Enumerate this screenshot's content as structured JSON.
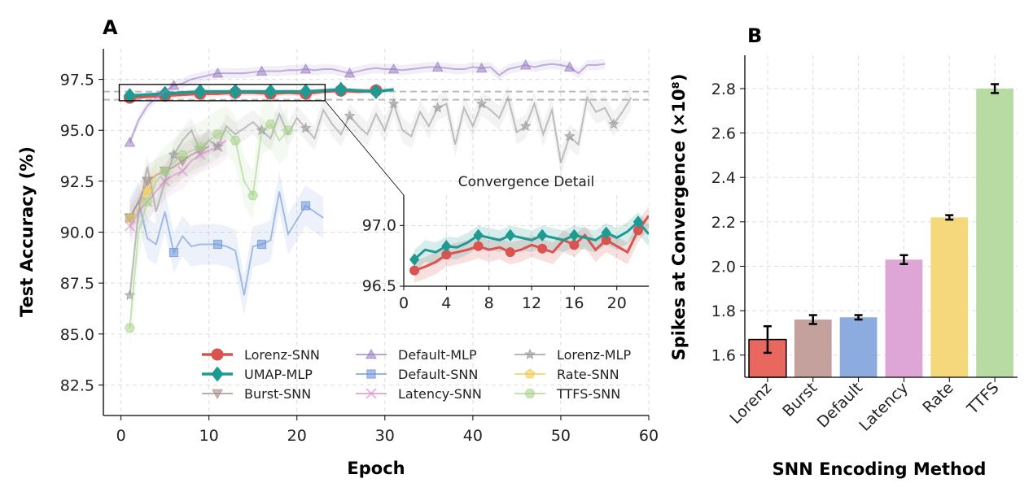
{
  "chart_data": [
    {
      "panel": "A",
      "type": "line",
      "xlabel": "Epoch",
      "ylabel": "Test Accuracy (%)",
      "xlim": [
        -2,
        60
      ],
      "ylim": [
        81,
        99
      ],
      "xticks": [
        0,
        10,
        20,
        30,
        40,
        50,
        60
      ],
      "yticks": [
        82.5,
        85.0,
        87.5,
        90.0,
        92.5,
        95.0,
        97.5
      ],
      "grid": true,
      "reference_lines": [
        96.9,
        96.5
      ],
      "legend_position": "bottom-right",
      "series": [
        {
          "name": "Lorenz-SNN",
          "color": "#d9534f",
          "marker": "circle",
          "x": [
            1,
            3,
            5,
            7,
            9,
            11,
            13,
            15,
            17,
            19,
            21,
            23,
            25,
            27,
            29
          ],
          "y": [
            96.6,
            96.65,
            96.7,
            96.75,
            96.8,
            96.8,
            96.85,
            96.85,
            96.8,
            96.85,
            96.8,
            96.9,
            96.95,
            96.9,
            96.95
          ],
          "spread": 0.15
        },
        {
          "name": "UMAP-MLP",
          "color": "#1f9a93",
          "marker": "diamond",
          "x": [
            1,
            3,
            5,
            7,
            9,
            11,
            13,
            15,
            17,
            19,
            21,
            23,
            25,
            27,
            29,
            31
          ],
          "y": [
            96.7,
            96.75,
            96.8,
            96.85,
            96.9,
            96.9,
            96.9,
            96.9,
            96.9,
            96.9,
            96.9,
            96.95,
            97.0,
            96.95,
            96.9,
            97.0
          ],
          "spread": 0.12
        },
        {
          "name": "Burst-SNN",
          "color": "#a78b87",
          "marker": "triangle-down",
          "x": [
            1,
            2,
            3,
            4,
            5,
            6,
            7,
            8,
            9,
            10
          ],
          "y": [
            90.7,
            91.5,
            92.5,
            92.8,
            93.0,
            93.2,
            93.5,
            93.8,
            94.0,
            94.2
          ],
          "spread": 0.8
        },
        {
          "name": "Default-MLP",
          "color": "#9b7fc4",
          "marker": "triangle-up",
          "x": [
            1,
            2,
            3,
            4,
            5,
            6,
            7,
            8,
            9,
            10,
            11,
            12,
            13,
            14,
            15,
            16,
            17,
            18,
            19,
            20,
            21,
            22,
            23,
            24,
            25,
            26,
            27,
            28,
            29,
            30,
            31,
            32,
            33,
            34,
            35,
            36,
            37,
            38,
            39,
            40,
            41,
            42,
            43,
            44,
            45,
            46,
            47,
            48,
            49,
            50,
            51,
            52,
            53,
            54,
            55
          ],
          "y": [
            94.4,
            95.5,
            96.2,
            96.6,
            96.9,
            97.2,
            97.3,
            97.5,
            97.6,
            97.7,
            97.8,
            97.8,
            97.8,
            97.8,
            97.85,
            97.9,
            97.9,
            97.9,
            97.95,
            97.95,
            98.0,
            97.95,
            98.0,
            98.0,
            97.9,
            97.8,
            97.9,
            98.0,
            98.05,
            98.0,
            98.0,
            97.95,
            98.0,
            98.05,
            98.1,
            98.1,
            98.05,
            98.0,
            98.0,
            98.1,
            98.05,
            98.1,
            97.7,
            98.0,
            98.1,
            98.2,
            98.1,
            98.2,
            98.25,
            98.2,
            98.1,
            97.8,
            98.2,
            98.2,
            98.25
          ],
          "spread": 0.25
        },
        {
          "name": "Default-SNN",
          "color": "#6e95d8",
          "marker": "square",
          "x": [
            1,
            2,
            3,
            4,
            5,
            6,
            7,
            8,
            9,
            10,
            11,
            12,
            13,
            14,
            15,
            16,
            17,
            18,
            19,
            20,
            21,
            22,
            23
          ],
          "y": [
            90.7,
            91.5,
            89.7,
            89.4,
            91.0,
            89.0,
            89.8,
            89.3,
            89.4,
            89.4,
            89.4,
            89.3,
            89.1,
            86.9,
            89.3,
            89.4,
            89.6,
            92.0,
            89.9,
            90.6,
            91.3,
            91.0,
            90.7
          ],
          "spread": 1.0
        },
        {
          "name": "Latency-SNN",
          "color": "#d98ccc",
          "marker": "x",
          "x": [
            1,
            2,
            3,
            4,
            5,
            6,
            7,
            8,
            9,
            10,
            11,
            12
          ],
          "y": [
            90.3,
            91.0,
            91.5,
            92.0,
            92.5,
            92.8,
            93.0,
            93.5,
            93.8,
            94.0,
            94.2,
            94.5
          ],
          "spread": 0.9
        },
        {
          "name": "Lorenz-MLP",
          "color": "#999999",
          "marker": "star",
          "x": [
            1,
            2,
            3,
            4,
            5,
            6,
            7,
            8,
            9,
            10,
            11,
            12,
            13,
            14,
            15,
            16,
            17,
            18,
            19,
            20,
            21,
            22,
            23,
            24,
            25,
            26,
            27,
            28,
            29,
            30,
            31,
            32,
            33,
            34,
            35,
            36,
            37,
            38,
            39,
            40,
            41,
            42,
            43,
            44,
            45,
            46,
            47,
            48,
            49,
            50,
            51,
            52,
            53,
            54,
            55,
            56,
            57,
            58
          ],
          "y": [
            86.9,
            91.0,
            93.2,
            91.0,
            92.5,
            93.8,
            94.5,
            95.0,
            94.0,
            94.5,
            94.2,
            95.2,
            94.8,
            95.1,
            95.4,
            95.0,
            94.6,
            95.8,
            94.8,
            95.6,
            95.1,
            94.6,
            96.0,
            95.3,
            94.8,
            95.7,
            95.2,
            94.8,
            95.8,
            95.0,
            96.3,
            95.0,
            94.7,
            95.9,
            95.2,
            96.1,
            96.3,
            94.3,
            96.1,
            95.2,
            96.3,
            96.0,
            95.6,
            96.6,
            94.9,
            95.2,
            96.3,
            94.8,
            96.0,
            93.4,
            94.7,
            94.3,
            96.6,
            95.9,
            96.1,
            95.3,
            95.9,
            96.6
          ],
          "spread": 0.6
        },
        {
          "name": "Rate-SNN",
          "color": "#f2c94c",
          "marker": "pentagon",
          "x": [
            1,
            2,
            3,
            4
          ],
          "y": [
            90.7,
            91.2,
            92.0,
            92.8
          ],
          "spread": 0.6
        },
        {
          "name": "TTFS-SNN",
          "color": "#a7d48a",
          "marker": "hexagon",
          "x": [
            1,
            2,
            3,
            4,
            5,
            6,
            7,
            8,
            9,
            10,
            11,
            12,
            13,
            14,
            15,
            16,
            17,
            18,
            19
          ],
          "y": [
            85.3,
            90.0,
            91.5,
            92.5,
            93.0,
            93.4,
            93.8,
            94.0,
            94.2,
            94.5,
            94.8,
            95.0,
            94.5,
            92.5,
            91.8,
            95.0,
            95.3,
            94.5,
            95.0
          ],
          "spread": 1.2
        }
      ],
      "inset": {
        "title": "Convergence Detail",
        "xlim": [
          0,
          23
        ],
        "ylim": [
          96.5,
          97.25
        ],
        "xticks": [
          0,
          4,
          8,
          12,
          16,
          20
        ],
        "yticks": [
          96.5,
          97.0
        ],
        "tick_labels_y": [
          "96.5",
          "97.0"
        ]
      }
    },
    {
      "panel": "B",
      "type": "bar",
      "xlabel": "SNN Encoding Method",
      "ylabel": "Spikes at Convergence (×10⁸)",
      "categories": [
        "Lorenz",
        "Burst",
        "Default",
        "Latency",
        "Rate",
        "TTFS"
      ],
      "values": [
        1.67,
        1.76,
        1.77,
        2.03,
        2.22,
        2.8
      ],
      "errors": [
        0.06,
        0.02,
        0.01,
        0.02,
        0.01,
        0.02
      ],
      "colors": [
        "#e8675f",
        "#c4a19d",
        "#8cacdf",
        "#dda6d6",
        "#f5d77c",
        "#b7dba3"
      ],
      "ylim": [
        1.5,
        2.95
      ],
      "yticks": [
        1.6,
        1.8,
        2.0,
        2.2,
        2.4,
        2.6,
        2.8
      ],
      "ytick_labels": [
        "1.6",
        "1.8",
        "2.0",
        "2.2",
        "2.4",
        "2.6",
        "2.8"
      ],
      "grid": true
    }
  ],
  "panel_labels": {
    "a": "A",
    "b": "B"
  },
  "tick_labels_a_y": [
    "82.5",
    "85.0",
    "87.5",
    "90.0",
    "92.5",
    "95.0",
    "97.5"
  ],
  "tick_labels_a_x": [
    "0",
    "10",
    "20",
    "30",
    "40",
    "50",
    "60"
  ],
  "tick_labels_inset_x": [
    "0",
    "4",
    "8",
    "12",
    "16",
    "20"
  ]
}
